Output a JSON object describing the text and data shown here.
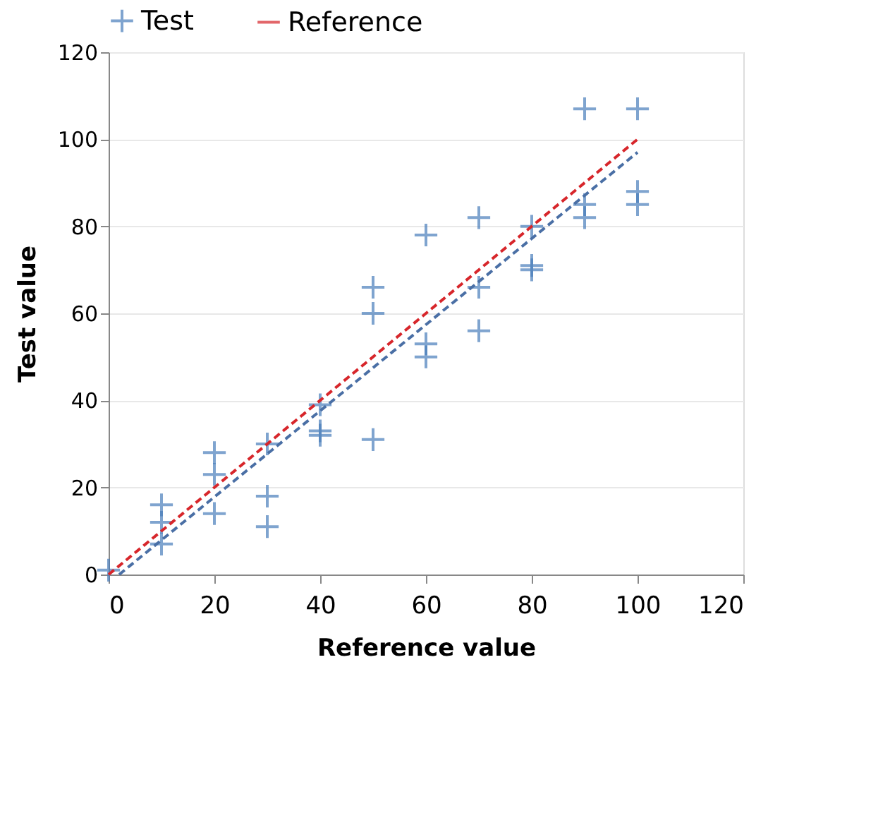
{
  "chart_data": {
    "type": "scatter",
    "xlabel": "Reference value",
    "ylabel": "Test value",
    "xlim": [
      0,
      120
    ],
    "ylim": [
      0,
      120
    ],
    "xticks": [
      0,
      20,
      40,
      60,
      80,
      100,
      120
    ],
    "yticks": [
      0,
      20,
      40,
      60,
      80,
      100,
      120
    ],
    "grid": "y",
    "legend": "top",
    "series": [
      {
        "name": "Test",
        "marker": "cross",
        "color": "#4a7ebb",
        "x": [
          0,
          10,
          10,
          10,
          20,
          20,
          20,
          30,
          30,
          30,
          40,
          40,
          40,
          50,
          50,
          50,
          60,
          60,
          60,
          70,
          70,
          70,
          80,
          80,
          80,
          90,
          90,
          90,
          100,
          100,
          100
        ],
        "values": [
          1,
          16,
          12,
          7,
          28,
          23,
          14,
          30,
          18,
          11,
          39,
          33,
          32,
          66,
          60,
          31,
          78,
          53,
          50,
          82,
          66,
          56,
          80,
          71,
          70,
          107,
          85,
          82,
          107,
          88,
          85
        ]
      },
      {
        "name": "Reference",
        "type": "line",
        "line_style": "dashed",
        "color": "#d7262b",
        "x": [
          0,
          100
        ],
        "values": [
          0,
          100
        ]
      },
      {
        "type": "line",
        "line_style": "dashed",
        "color": "#4a6fa5",
        "x": [
          2,
          100
        ],
        "values": [
          0,
          97
        ]
      }
    ]
  }
}
